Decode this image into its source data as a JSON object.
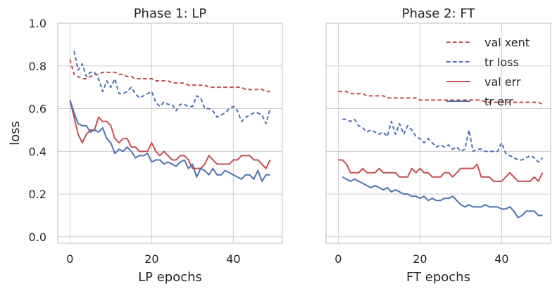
{
  "chart_data": [
    {
      "type": "line",
      "title": "Phase 1: LP",
      "xlabel": "LP epochs",
      "ylabel": "loss",
      "xlim": [
        -3,
        52
      ],
      "ylim": [
        -0.03,
        1.0
      ],
      "xticks": [
        0,
        20,
        40
      ],
      "yticks": [
        0.0,
        0.2,
        0.4,
        0.6,
        0.8,
        1.0
      ],
      "ytick_labels": [
        "0.0",
        "0.2",
        "0.4",
        "0.6",
        "0.8",
        "1.0"
      ],
      "grid": true,
      "series": [
        {
          "key": "val_xent",
          "color": "#c44e52",
          "dash": "dashed",
          "x": [
            0,
            1,
            2,
            3,
            4,
            5,
            6,
            7,
            8,
            9,
            10,
            11,
            12,
            13,
            14,
            15,
            16,
            17,
            18,
            19,
            20,
            21,
            22,
            23,
            24,
            25,
            26,
            27,
            28,
            29,
            30,
            31,
            32,
            33,
            34,
            35,
            36,
            37,
            38,
            39,
            40,
            41,
            42,
            43,
            44,
            45,
            46,
            47,
            48,
            49
          ],
          "values": [
            0.83,
            0.76,
            0.75,
            0.74,
            0.74,
            0.75,
            0.76,
            0.76,
            0.77,
            0.77,
            0.77,
            0.77,
            0.76,
            0.76,
            0.75,
            0.75,
            0.74,
            0.74,
            0.74,
            0.74,
            0.74,
            0.73,
            0.73,
            0.73,
            0.73,
            0.72,
            0.72,
            0.72,
            0.72,
            0.71,
            0.71,
            0.71,
            0.71,
            0.71,
            0.7,
            0.7,
            0.7,
            0.7,
            0.7,
            0.7,
            0.7,
            0.7,
            0.7,
            0.69,
            0.69,
            0.69,
            0.69,
            0.69,
            0.68,
            0.68
          ]
        },
        {
          "key": "tr_loss",
          "color": "#4c72b0",
          "dash": "dashed",
          "x": [
            1,
            2,
            3,
            4,
            5,
            6,
            7,
            8,
            9,
            10,
            11,
            12,
            13,
            14,
            15,
            16,
            17,
            18,
            19,
            20,
            21,
            22,
            23,
            24,
            25,
            26,
            27,
            28,
            29,
            30,
            31,
            32,
            33,
            34,
            35,
            36,
            37,
            38,
            39,
            40,
            41,
            42,
            43,
            44,
            45,
            46,
            47,
            48,
            49
          ],
          "values": [
            0.87,
            0.78,
            0.81,
            0.75,
            0.77,
            0.77,
            0.74,
            0.68,
            0.73,
            0.7,
            0.74,
            0.67,
            0.67,
            0.68,
            0.7,
            0.67,
            0.65,
            0.66,
            0.67,
            0.68,
            0.63,
            0.61,
            0.63,
            0.62,
            0.62,
            0.59,
            0.62,
            0.62,
            0.61,
            0.61,
            0.66,
            0.65,
            0.6,
            0.6,
            0.59,
            0.56,
            0.57,
            0.58,
            0.6,
            0.61,
            0.59,
            0.54,
            0.56,
            0.57,
            0.58,
            0.58,
            0.57,
            0.53,
            0.6
          ]
        },
        {
          "key": "val_err",
          "color": "#c44e52",
          "dash": "solid",
          "x": [
            0,
            1,
            2,
            3,
            4,
            5,
            6,
            7,
            8,
            9,
            10,
            11,
            12,
            13,
            14,
            15,
            16,
            17,
            18,
            19,
            20,
            21,
            22,
            23,
            24,
            25,
            26,
            27,
            28,
            29,
            30,
            31,
            32,
            33,
            34,
            35,
            36,
            37,
            38,
            39,
            40,
            41,
            42,
            43,
            44,
            45,
            46,
            47,
            48,
            49
          ],
          "values": [
            0.64,
            0.56,
            0.48,
            0.44,
            0.48,
            0.5,
            0.5,
            0.56,
            0.54,
            0.54,
            0.52,
            0.46,
            0.44,
            0.46,
            0.46,
            0.42,
            0.42,
            0.4,
            0.4,
            0.4,
            0.44,
            0.4,
            0.38,
            0.4,
            0.38,
            0.36,
            0.36,
            0.38,
            0.38,
            0.36,
            0.32,
            0.32,
            0.32,
            0.34,
            0.38,
            0.36,
            0.34,
            0.34,
            0.34,
            0.34,
            0.36,
            0.36,
            0.38,
            0.38,
            0.38,
            0.36,
            0.36,
            0.34,
            0.32,
            0.36
          ]
        },
        {
          "key": "tr_err",
          "color": "#4c72b0",
          "dash": "solid",
          "x": [
            0,
            1,
            2,
            3,
            4,
            5,
            6,
            7,
            8,
            9,
            10,
            11,
            12,
            13,
            14,
            15,
            16,
            17,
            18,
            19,
            20,
            21,
            22,
            23,
            24,
            25,
            26,
            27,
            28,
            29,
            30,
            31,
            32,
            33,
            34,
            35,
            36,
            37,
            38,
            39,
            40,
            41,
            42,
            43,
            44,
            45,
            46,
            47,
            48,
            49
          ],
          "values": [
            0.64,
            0.58,
            0.53,
            0.52,
            0.52,
            0.49,
            0.5,
            0.49,
            0.51,
            0.46,
            0.44,
            0.39,
            0.41,
            0.4,
            0.42,
            0.4,
            0.37,
            0.38,
            0.38,
            0.39,
            0.35,
            0.36,
            0.36,
            0.34,
            0.35,
            0.34,
            0.33,
            0.35,
            0.36,
            0.32,
            0.34,
            0.28,
            0.32,
            0.31,
            0.29,
            0.32,
            0.29,
            0.29,
            0.31,
            0.3,
            0.29,
            0.28,
            0.27,
            0.29,
            0.29,
            0.27,
            0.31,
            0.26,
            0.29,
            0.29
          ]
        }
      ]
    },
    {
      "type": "line",
      "title": "Phase 2: FT",
      "xlabel": "FT epochs",
      "ylabel": "",
      "xlim": [
        -3,
        52
      ],
      "ylim": [
        -0.03,
        1.0
      ],
      "xticks": [
        0,
        20,
        40
      ],
      "yticks": [
        0.0,
        0.2,
        0.4,
        0.6,
        0.8,
        1.0
      ],
      "grid": true,
      "legend": {
        "placement": "top-right",
        "entries": [
          {
            "label": "val xent",
            "series": "val_xent"
          },
          {
            "label": "tr loss",
            "series": "tr_loss"
          },
          {
            "label": "val err",
            "series": "val_err"
          },
          {
            "label": "tr err",
            "series": "tr_err"
          }
        ]
      },
      "series": [
        {
          "key": "val_xent",
          "color": "#c44e52",
          "dash": "dashed",
          "x": [
            0,
            1,
            2,
            3,
            4,
            5,
            6,
            7,
            8,
            9,
            10,
            11,
            12,
            13,
            14,
            15,
            16,
            17,
            18,
            19,
            20,
            21,
            22,
            23,
            24,
            25,
            26,
            27,
            28,
            29,
            30,
            31,
            32,
            33,
            34,
            35,
            36,
            37,
            38,
            39,
            40,
            41,
            42,
            43,
            44,
            45,
            46,
            47,
            48,
            49,
            50
          ],
          "values": [
            0.68,
            0.68,
            0.68,
            0.67,
            0.67,
            0.67,
            0.67,
            0.66,
            0.66,
            0.66,
            0.66,
            0.66,
            0.65,
            0.65,
            0.65,
            0.65,
            0.65,
            0.65,
            0.65,
            0.65,
            0.64,
            0.64,
            0.64,
            0.64,
            0.64,
            0.64,
            0.64,
            0.64,
            0.64,
            0.64,
            0.64,
            0.64,
            0.64,
            0.64,
            0.64,
            0.64,
            0.63,
            0.63,
            0.63,
            0.63,
            0.63,
            0.63,
            0.63,
            0.63,
            0.63,
            0.63,
            0.63,
            0.63,
            0.63,
            0.63,
            0.62
          ]
        },
        {
          "key": "tr_loss",
          "color": "#4c72b0",
          "dash": "dashed",
          "x": [
            1,
            2,
            3,
            4,
            5,
            6,
            7,
            8,
            9,
            10,
            11,
            12,
            13,
            14,
            15,
            16,
            17,
            18,
            19,
            20,
            21,
            22,
            23,
            24,
            25,
            26,
            27,
            28,
            29,
            30,
            31,
            32,
            33,
            34,
            35,
            36,
            37,
            38,
            39,
            40,
            41,
            42,
            43,
            44,
            45,
            46,
            47,
            48,
            49,
            50
          ],
          "values": [
            0.55,
            0.55,
            0.54,
            0.55,
            0.52,
            0.51,
            0.49,
            0.5,
            0.49,
            0.48,
            0.49,
            0.47,
            0.54,
            0.48,
            0.53,
            0.48,
            0.52,
            0.5,
            0.47,
            0.46,
            0.44,
            0.46,
            0.44,
            0.42,
            0.43,
            0.42,
            0.43,
            0.41,
            0.42,
            0.4,
            0.41,
            0.5,
            0.4,
            0.41,
            0.41,
            0.4,
            0.4,
            0.4,
            0.4,
            0.44,
            0.39,
            0.38,
            0.37,
            0.36,
            0.36,
            0.37,
            0.38,
            0.37,
            0.35,
            0.37
          ]
        },
        {
          "key": "val_err",
          "color": "#c44e52",
          "dash": "solid",
          "x": [
            0,
            1,
            2,
            3,
            4,
            5,
            6,
            7,
            8,
            9,
            10,
            11,
            12,
            13,
            14,
            15,
            16,
            17,
            18,
            19,
            20,
            21,
            22,
            23,
            24,
            25,
            26,
            27,
            28,
            29,
            30,
            31,
            32,
            33,
            34,
            35,
            36,
            37,
            38,
            39,
            40,
            41,
            42,
            43,
            44,
            45,
            46,
            47,
            48,
            49,
            50
          ],
          "values": [
            0.36,
            0.36,
            0.34,
            0.3,
            0.3,
            0.3,
            0.32,
            0.3,
            0.3,
            0.3,
            0.32,
            0.3,
            0.3,
            0.3,
            0.3,
            0.28,
            0.28,
            0.28,
            0.32,
            0.3,
            0.32,
            0.3,
            0.3,
            0.28,
            0.28,
            0.28,
            0.3,
            0.3,
            0.28,
            0.3,
            0.32,
            0.32,
            0.32,
            0.32,
            0.34,
            0.28,
            0.28,
            0.28,
            0.26,
            0.26,
            0.26,
            0.28,
            0.3,
            0.28,
            0.26,
            0.26,
            0.26,
            0.26,
            0.28,
            0.26,
            0.3
          ]
        },
        {
          "key": "tr_err",
          "color": "#4c72b0",
          "dash": "solid",
          "x": [
            1,
            2,
            3,
            4,
            5,
            6,
            7,
            8,
            9,
            10,
            11,
            12,
            13,
            14,
            15,
            16,
            17,
            18,
            19,
            20,
            21,
            22,
            23,
            24,
            25,
            26,
            27,
            28,
            29,
            30,
            31,
            32,
            33,
            34,
            35,
            36,
            37,
            38,
            39,
            40,
            41,
            42,
            43,
            44,
            45,
            46,
            47,
            48,
            49,
            50
          ],
          "values": [
            0.28,
            0.27,
            0.26,
            0.27,
            0.26,
            0.25,
            0.24,
            0.23,
            0.24,
            0.23,
            0.22,
            0.23,
            0.21,
            0.22,
            0.21,
            0.2,
            0.2,
            0.19,
            0.19,
            0.18,
            0.19,
            0.17,
            0.18,
            0.17,
            0.17,
            0.18,
            0.18,
            0.19,
            0.17,
            0.15,
            0.14,
            0.15,
            0.14,
            0.14,
            0.14,
            0.15,
            0.14,
            0.14,
            0.14,
            0.13,
            0.13,
            0.14,
            0.12,
            0.09,
            0.1,
            0.12,
            0.12,
            0.12,
            0.1,
            0.1
          ]
        }
      ]
    }
  ]
}
